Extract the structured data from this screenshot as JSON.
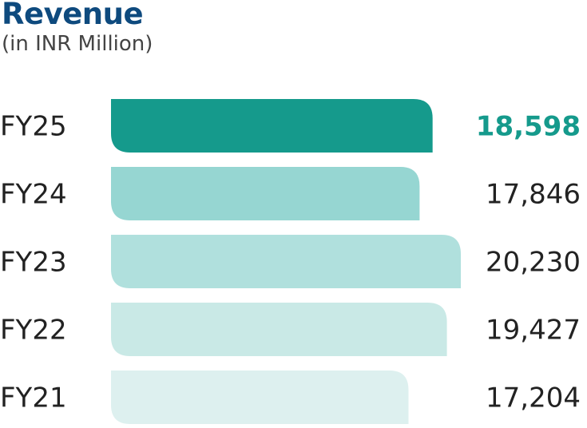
{
  "title": "Revenue",
  "subtitle": "(in INR Million)",
  "chart_data": {
    "type": "bar",
    "orientation": "horizontal",
    "title": "Revenue",
    "subtitle": "(in INR Million)",
    "categories": [
      "FY25",
      "FY24",
      "FY23",
      "FY22",
      "FY21"
    ],
    "values": [
      18598,
      17846,
      20230,
      19427,
      17204
    ],
    "value_labels": [
      "18,598",
      "17,846",
      "20,230",
      "19,427",
      "17,204"
    ],
    "highlight": "FY25",
    "colors": [
      "#159a8c",
      "#96d6d2",
      "#b0e0dd",
      "#c9e9e6",
      "#ddf0ef"
    ],
    "xlim": [
      0,
      20230
    ],
    "grid": false,
    "legend": "none"
  }
}
